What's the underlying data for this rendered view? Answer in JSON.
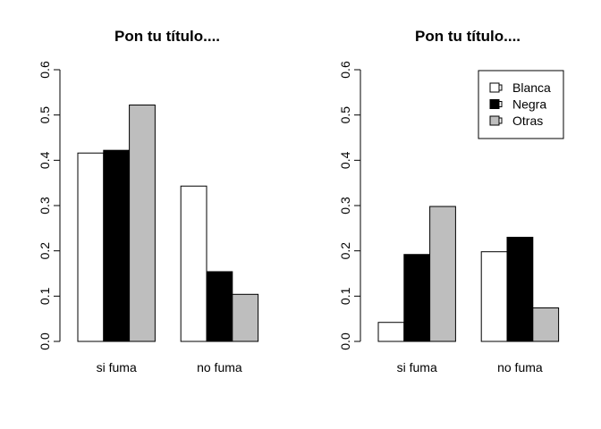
{
  "chart_data": [
    {
      "type": "bar",
      "title": "Pon tu título....",
      "xlabel": "",
      "ylabel": "",
      "ylim": [
        0,
        0.6
      ],
      "yticks": [
        "0.0",
        "0.1",
        "0.2",
        "0.3",
        "0.4",
        "0.5",
        "0.6"
      ],
      "categories": [
        "si fuma",
        "no fuma"
      ],
      "series": [
        {
          "name": "Blanca",
          "color": "#ffffff",
          "values": [
            0.416,
            0.343
          ]
        },
        {
          "name": "Negra",
          "color": "#000000",
          "values": [
            0.422,
            0.154
          ]
        },
        {
          "name": "Otras",
          "color": "#bebebe",
          "values": [
            0.522,
            0.104
          ]
        }
      ],
      "legend": null,
      "grid": false
    },
    {
      "type": "bar",
      "title": "Pon tu título....",
      "xlabel": "",
      "ylabel": "",
      "ylim": [
        0,
        0.6
      ],
      "yticks": [
        "0.0",
        "0.1",
        "0.2",
        "0.3",
        "0.4",
        "0.5",
        "0.6"
      ],
      "categories": [
        "si fuma",
        "no fuma"
      ],
      "series": [
        {
          "name": "Blanca",
          "color": "#ffffff",
          "values": [
            0.042,
            0.198
          ]
        },
        {
          "name": "Negra",
          "color": "#000000",
          "values": [
            0.192,
            0.23
          ]
        },
        {
          "name": "Otras",
          "color": "#bebebe",
          "values": [
            0.298,
            0.074
          ]
        }
      ],
      "legend": "top-right",
      "grid": false
    }
  ]
}
